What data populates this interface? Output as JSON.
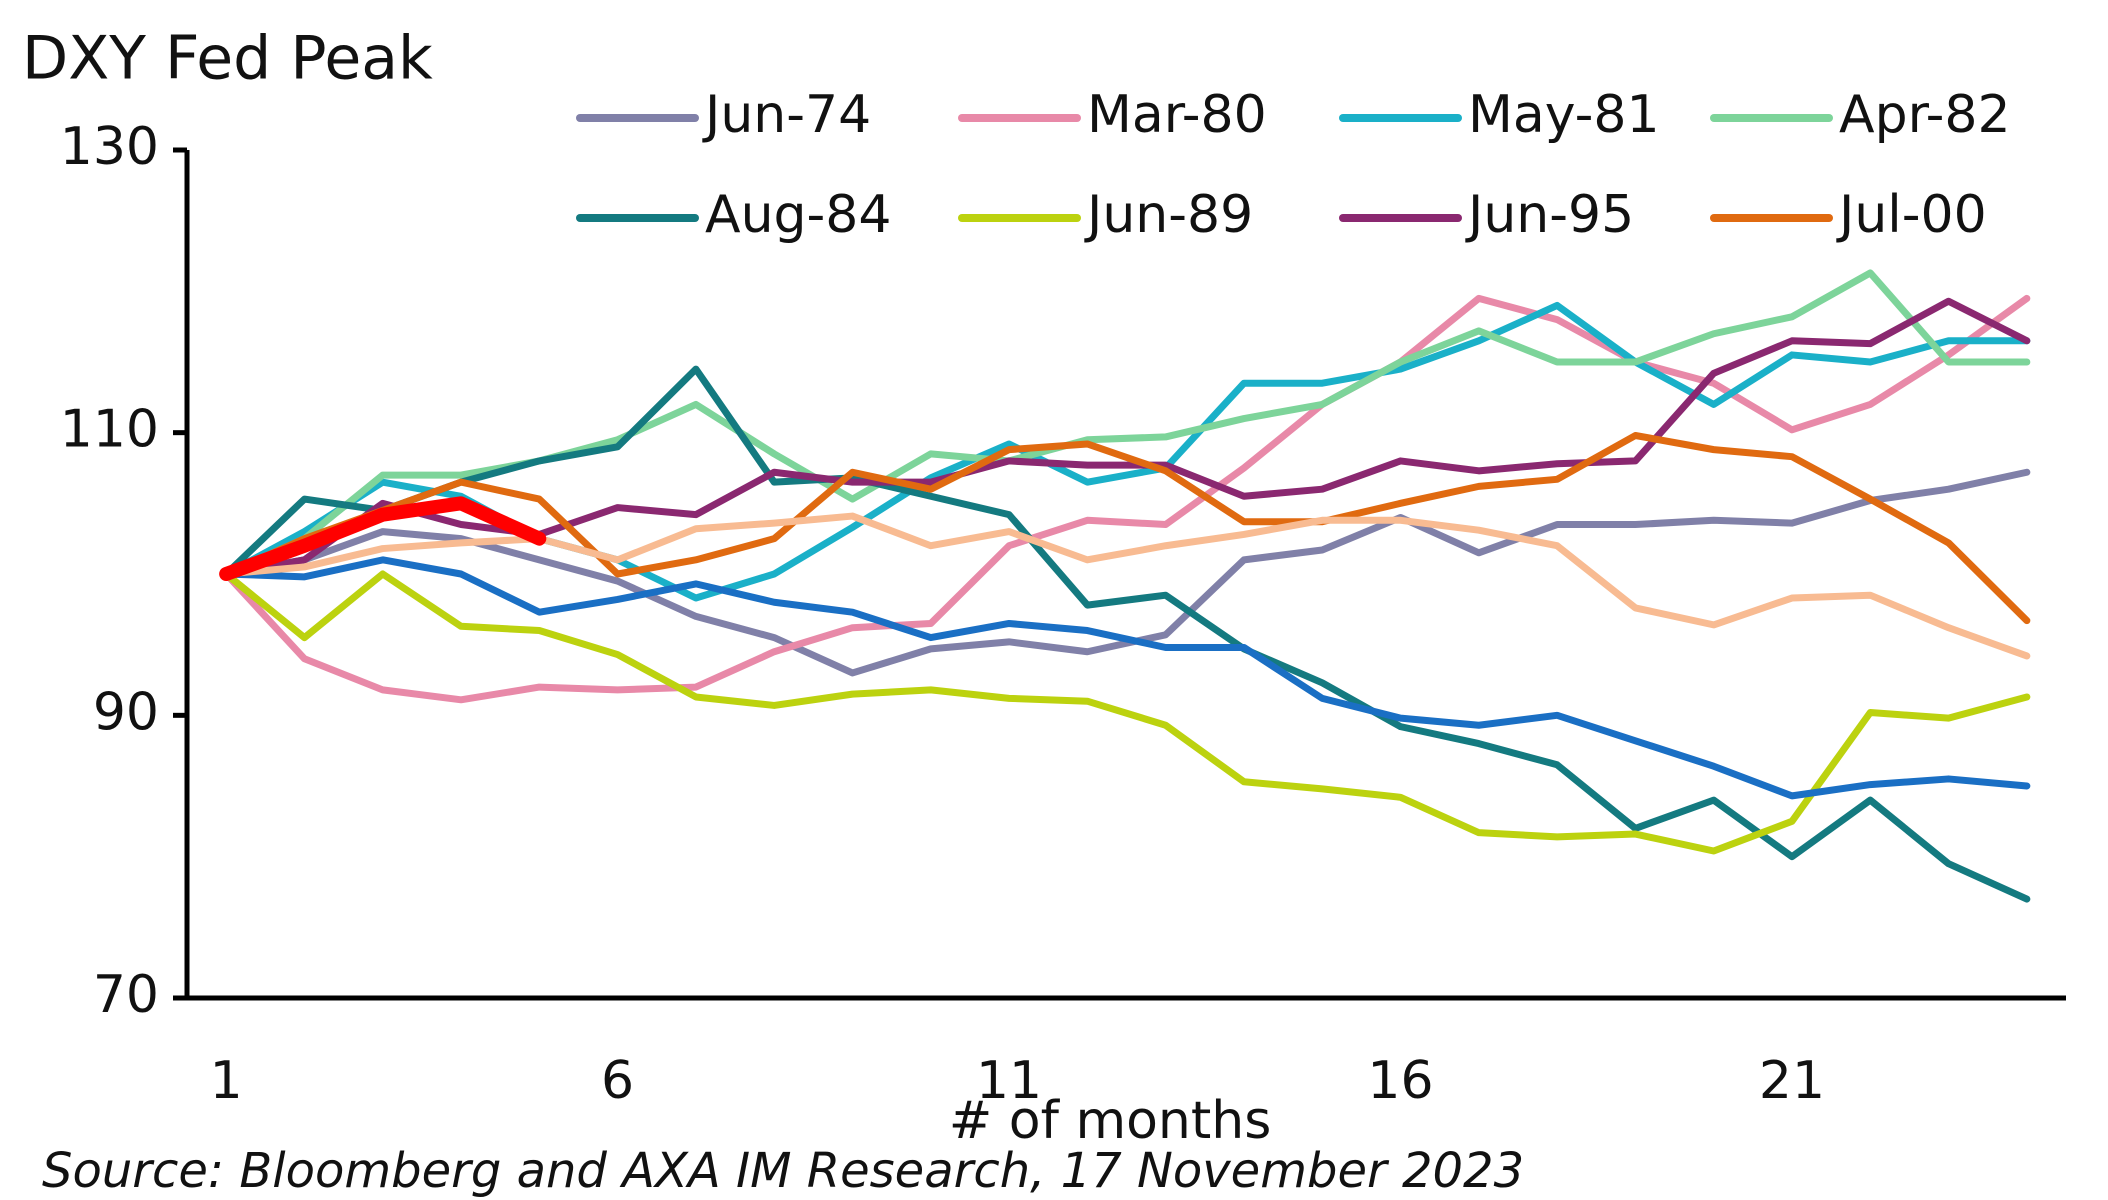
{
  "chart_data": {
    "type": "line",
    "title": "DXY Fed Peak",
    "xlabel": "# of months",
    "source": "Source: Bloomberg and AXA IM Research, 17 November 2023",
    "x": [
      1,
      2,
      3,
      4,
      5,
      6,
      7,
      8,
      9,
      10,
      11,
      12,
      13,
      14,
      15,
      16,
      17,
      18,
      19,
      20,
      21,
      22,
      23,
      24
    ],
    "xlim": [
      0.5,
      24.5
    ],
    "xticks": [
      1,
      6,
      11,
      16,
      21
    ],
    "ylim": [
      70,
      130
    ],
    "yticks": [
      70,
      90,
      110,
      130
    ],
    "legend": "top",
    "series": [
      {
        "name": "Jun-74",
        "color": "#8080a8",
        "values": [
          100,
          101,
          103,
          102.5,
          101,
          99.5,
          97,
          95.5,
          93,
          94.7,
          95.2,
          94.5,
          95.7,
          101,
          101.7,
          104,
          101.5,
          103.5,
          103.5,
          103.8,
          103.6,
          105.2,
          106,
          107.2
        ]
      },
      {
        "name": "Mar-80",
        "color": "#e889a8",
        "values": [
          100,
          94,
          91.8,
          91.1,
          92,
          91.8,
          92,
          94.5,
          96.2,
          96.5,
          102,
          103.8,
          103.5,
          107.5,
          112,
          115,
          119.5,
          118,
          115,
          113.5,
          110.2,
          112,
          115.5,
          119.5
        ]
      },
      {
        "name": "May-81",
        "color": "#1ab0c8",
        "values": [
          100,
          103,
          106.5,
          105.5,
          102.5,
          101,
          98.3,
          100,
          103.3,
          106.8,
          109.2,
          106.5,
          107.5,
          113.5,
          113.5,
          114.5,
          116.5,
          119,
          115,
          112,
          115.5,
          115,
          116.5,
          116.5
        ]
      },
      {
        "name": "Apr-82",
        "color": "#7dd49a",
        "values": [
          100,
          102.5,
          107,
          107,
          108,
          109.5,
          112,
          108.5,
          105.3,
          108.5,
          108,
          109.5,
          109.7,
          111,
          112,
          115,
          117.2,
          115,
          115,
          117,
          118.2,
          121.3,
          115,
          115
        ]
      },
      {
        "name": "Aug-84",
        "color": "#147a80",
        "values": [
          100,
          105.3,
          104.5,
          106.5,
          108,
          109,
          114.5,
          106.5,
          106.8,
          105.5,
          104.2,
          97.8,
          98.5,
          94.7,
          92.3,
          89.2,
          88,
          86.5,
          82,
          84,
          80,
          84,
          79.5,
          77
        ]
      },
      {
        "name": "Jun-89",
        "color": "#bcd20f",
        "values": [
          100,
          95.5,
          100,
          96.3,
          96,
          94.3,
          91.3,
          90.7,
          91.5,
          91.8,
          91.2,
          91,
          89.3,
          85.3,
          84.8,
          84.2,
          81.7,
          81.4,
          81.6,
          80.4,
          82.5,
          90.2,
          89.8,
          91.3
        ]
      },
      {
        "name": "Jun-95",
        "color": "#8a2870",
        "values": [
          100,
          101,
          105,
          103.5,
          102.8,
          104.7,
          104.2,
          107.2,
          106.5,
          106.5,
          108,
          107.7,
          107.7,
          105.5,
          106,
          108,
          107.3,
          107.8,
          108,
          114.2,
          116.5,
          116.3,
          119.3,
          116.5
        ]
      },
      {
        "name": "Jul-00",
        "color": "#e06a10",
        "values": [
          100,
          102.5,
          104.5,
          106.5,
          105.3,
          100,
          101,
          102.5,
          107.2,
          106,
          108.8,
          109.2,
          107.3,
          103.7,
          103.7,
          105,
          106.2,
          106.7,
          109.8,
          108.8,
          108.3,
          105.3,
          102.2,
          96.7
        ]
      },
      {
        "color": "#1a6fc4",
        "values": [
          100,
          99.8,
          101,
          100,
          97.3,
          98.2,
          99.3,
          98,
          97.3,
          95.5,
          96.5,
          96,
          94.8,
          94.8,
          91.2,
          89.8,
          89.3,
          90,
          88.2,
          86.4,
          84.3,
          85.1,
          85.5,
          85
        ]
      },
      {
        "color": "#f8bb92",
        "values": [
          100,
          100.5,
          101.8,
          102.2,
          102.5,
          101,
          103.2,
          103.6,
          104.1,
          102,
          103,
          101,
          102,
          102.8,
          103.8,
          103.8,
          103.1,
          102,
          97.6,
          96.4,
          98.3,
          98.5,
          96.2,
          94.2
        ]
      },
      {
        "color": "#ff0000",
        "highlight": true,
        "values": [
          100,
          102,
          104.2,
          105,
          102.5,
          null,
          null,
          null,
          null,
          null,
          null,
          null,
          null,
          null,
          null,
          null,
          null,
          null,
          null,
          null,
          null,
          null,
          null,
          null
        ]
      }
    ]
  }
}
